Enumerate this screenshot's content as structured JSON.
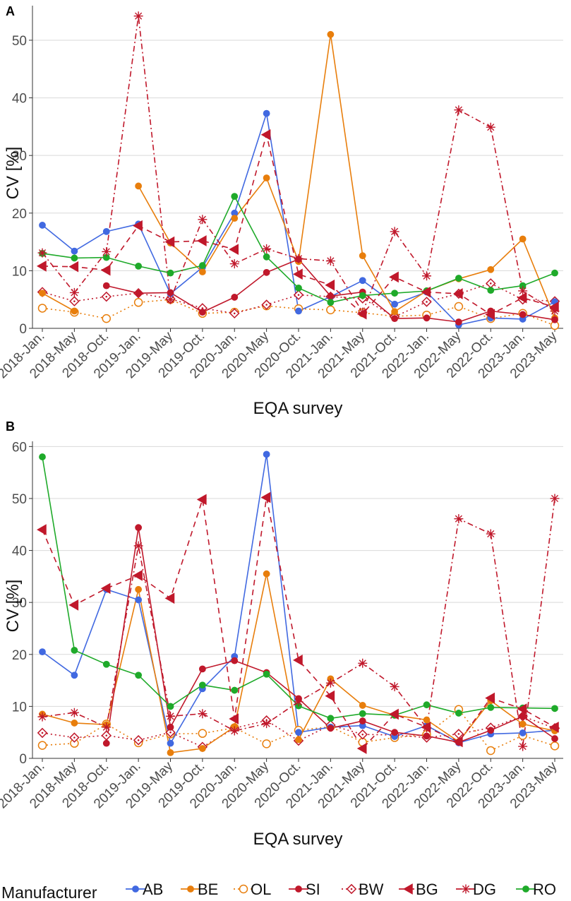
{
  "legend": {
    "title": "Manufacturer",
    "items": [
      {
        "name": "AB",
        "color": "#4169e1",
        "dash": "solid",
        "marker": "circle"
      },
      {
        "name": "BE",
        "color": "#e87e0c",
        "dash": "solid",
        "marker": "circle"
      },
      {
        "name": "OL",
        "color": "#e87e0c",
        "dash": "dotted",
        "marker": "open-circle"
      },
      {
        "name": "SI",
        "color": "#c0182b",
        "dash": "solid",
        "marker": "circle"
      },
      {
        "name": "BW",
        "color": "#c0182b",
        "dash": "dotted",
        "marker": "open-diamond"
      },
      {
        "name": "BG",
        "color": "#c0182b",
        "dash": "dashed",
        "marker": "triangle-left"
      },
      {
        "name": "DG",
        "color": "#c0182b",
        "dash": "dashdot",
        "marker": "asterisk"
      },
      {
        "name": "RO",
        "color": "#1faa2a",
        "dash": "solid",
        "marker": "circle"
      }
    ]
  },
  "chart_data": [
    {
      "panel": "A",
      "type": "line",
      "xlabel": "EQA survey",
      "ylabel": "CV [%]",
      "ylim": [
        0,
        56
      ],
      "yticks": [
        0,
        10,
        20,
        30,
        40,
        50
      ],
      "grid": true,
      "categories": [
        "2018-Jan.",
        "2018-May",
        "2018-Oct.",
        "2019-Jan.",
        "2019-May",
        "2019-Oct.",
        "2020-Jan.",
        "2020-May",
        "2020-Oct.",
        "2021-Jan.",
        "2021-May",
        "2021-Oct.",
        "2022-Jan.",
        "2022-May",
        "2022-Oct.",
        "2023-Jan.",
        "2023-May"
      ],
      "series": [
        {
          "name": "AB",
          "values": [
            17.9,
            13.4,
            16.8,
            18.1,
            6.0,
            10.6,
            20.0,
            37.3,
            3.0,
            5.5,
            8.3,
            4.2,
            6.3,
            0.6,
            1.8,
            1.6,
            4.6
          ]
        },
        {
          "name": "BE",
          "values": [
            6.1,
            3.0,
            null,
            24.7,
            14.8,
            9.8,
            19.1,
            26.1,
            11.6,
            51.0,
            12.6,
            2.9,
            6.5,
            8.6,
            10.2,
            15.5,
            1.8
          ]
        },
        {
          "name": "OL",
          "values": [
            3.5,
            2.8,
            1.7,
            4.5,
            5.0,
            2.6,
            2.8,
            3.9,
            3.4,
            3.2,
            2.7,
            2.1,
            2.3,
            3.8,
            1.7,
            2.6,
            0.5
          ]
        },
        {
          "name": "SI",
          "values": [
            null,
            null,
            7.4,
            6.1,
            6.2,
            2.8,
            5.4,
            9.7,
            12.0,
            5.6,
            6.3,
            1.7,
            1.8,
            1.1,
            3.0,
            2.4,
            1.5
          ]
        },
        {
          "name": "BW",
          "values": [
            6.3,
            4.7,
            5.5,
            6.1,
            5.1,
            3.5,
            2.6,
            4.1,
            5.8,
            5.5,
            5.2,
            2.0,
            4.6,
            6.0,
            7.8,
            5.0,
            4.7
          ]
        },
        {
          "name": "BG",
          "values": [
            10.8,
            10.7,
            10.1,
            17.8,
            15.0,
            15.2,
            13.7,
            33.6,
            9.4,
            7.5,
            2.5,
            8.9,
            6.3,
            6.0,
            2.4,
            5.3,
            3.7
          ]
        },
        {
          "name": "DG",
          "values": [
            13.1,
            6.2,
            13.3,
            54.2,
            5.0,
            18.9,
            11.2,
            13.8,
            12.1,
            11.7,
            2.8,
            16.8,
            9.1,
            37.9,
            34.9,
            6.5,
            3.0
          ]
        },
        {
          "name": "RO",
          "values": [
            13.0,
            12.2,
            12.3,
            10.8,
            9.6,
            10.9,
            22.9,
            12.4,
            7.0,
            4.5,
            5.7,
            6.1,
            6.5,
            8.7,
            6.6,
            7.4,
            9.6
          ]
        }
      ]
    },
    {
      "panel": "B",
      "type": "line",
      "xlabel": "EQA survey",
      "ylabel": "CV [%]",
      "ylim": [
        0,
        61
      ],
      "yticks": [
        0,
        10,
        20,
        30,
        40,
        50,
        60
      ],
      "grid": true,
      "categories": [
        "2018-Jan.",
        "2018-May",
        "2018-Oct.",
        "2019-Jan.",
        "2019-May",
        "2019-Oct.",
        "2020-Jan.",
        "2020-May",
        "2020-Oct.",
        "2021-Jan.",
        "2021-May",
        "2021-Oct.",
        "2022-Jan.",
        "2022-May",
        "2022-Oct.",
        "2023-Jan.",
        "2023-May"
      ],
      "series": [
        {
          "name": "AB",
          "values": [
            20.5,
            16.0,
            32.5,
            30.5,
            2.9,
            13.4,
            19.6,
            58.5,
            5.0,
            6.0,
            6.3,
            4.2,
            6.3,
            3.0,
            4.7,
            4.9,
            5.4
          ]
        },
        {
          "name": "BE",
          "values": [
            8.5,
            6.8,
            6.5,
            32.5,
            1.1,
            1.9,
            6.1,
            35.5,
            3.6,
            15.3,
            10.2,
            8.3,
            7.4,
            3.2,
            11.1,
            6.6,
            5.3
          ]
        },
        {
          "name": "OL",
          "values": [
            2.5,
            2.9,
            6.6,
            3.0,
            4.7,
            4.8,
            5.9,
            2.8,
            5.4,
            6.1,
            3.1,
            4.0,
            4.6,
            9.4,
            1.5,
            4.4,
            2.4
          ]
        },
        {
          "name": "SI",
          "values": [
            null,
            null,
            2.9,
            44.4,
            6.0,
            17.2,
            18.8,
            16.5,
            11.5,
            5.8,
            7.2,
            5.0,
            4.3,
            3.1,
            5.4,
            8.1,
            3.8
          ]
        },
        {
          "name": "BW",
          "values": [
            4.9,
            4.0,
            4.4,
            3.5,
            5.0,
            2.2,
            5.8,
            7.3,
            3.4,
            6.4,
            4.6,
            4.5,
            4.0,
            4.7,
            5.9,
            8.1,
            5.8
          ]
        },
        {
          "name": "BG",
          "values": [
            44.0,
            29.5,
            32.7,
            35.2,
            30.8,
            49.8,
            7.6,
            50.2,
            18.9,
            12.0,
            1.9,
            8.5,
            6.0,
            3.2,
            11.6,
            9.5,
            6.0
          ]
        },
        {
          "name": "DG",
          "values": [
            8.0,
            8.8,
            6.0,
            40.9,
            8.1,
            8.6,
            5.3,
            6.7,
            10.9,
            14.5,
            18.3,
            13.8,
            5.9,
            46.1,
            43.2,
            2.3,
            50.0
          ]
        },
        {
          "name": "RO",
          "values": [
            58.0,
            20.8,
            18.1,
            16.0,
            10.0,
            14.1,
            13.1,
            16.2,
            10.1,
            7.7,
            8.6,
            8.3,
            10.3,
            8.7,
            9.8,
            9.7,
            9.6
          ]
        }
      ]
    }
  ]
}
